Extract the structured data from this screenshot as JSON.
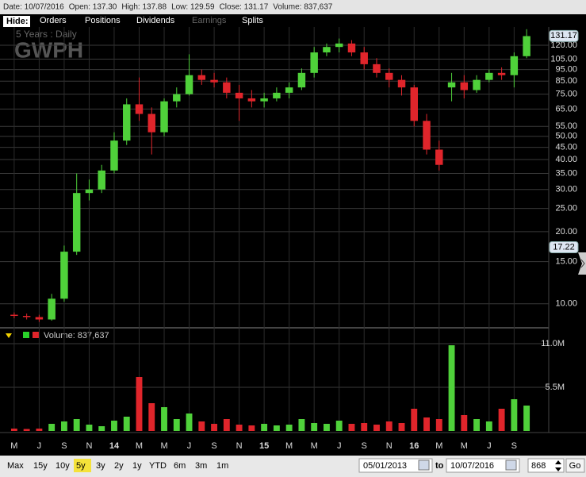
{
  "info": [
    "Date: 10/07/2016",
    "Open: 137.30",
    "High: 137.88",
    "Low: 129.59",
    "Close: 131.17",
    "Volume: 837,637"
  ],
  "tabs": {
    "hide": "Hide:",
    "items": [
      "Orders",
      "Positions",
      "Dividends",
      "Earnings",
      "Splits"
    ],
    "disabled": "Earnings"
  },
  "chart_data": {
    "type": "candlestick",
    "title": "GWPH",
    "subtitle": "5 Years : Daily",
    "log_scale": true,
    "grid": true,
    "up_color": "#4fd13a",
    "down_color": "#e0252b",
    "categories": [
      "M",
      null,
      "J",
      null,
      "S",
      null,
      "N",
      null,
      "14",
      null,
      "M",
      null,
      "M",
      null,
      "J",
      null,
      "S",
      null,
      "N",
      null,
      "15",
      null,
      "M",
      null,
      "M",
      null,
      "J",
      null,
      "S",
      null,
      "N",
      null,
      "16",
      null,
      "M",
      null,
      "M",
      null,
      "J",
      null,
      "S",
      null
    ],
    "open": [
      9.0,
      8.9,
      8.8,
      8.6,
      10.5,
      16.5,
      29,
      30,
      36,
      48,
      68,
      62,
      52,
      70,
      75,
      90,
      86,
      84,
      76,
      72,
      70,
      72,
      76,
      80,
      92,
      112,
      118,
      122,
      112,
      100,
      92,
      86,
      80,
      58,
      44,
      80,
      84,
      78,
      86,
      92,
      90,
      108
    ],
    "high": [
      9.2,
      9.1,
      9.0,
      11.0,
      17.5,
      35,
      33,
      38,
      52,
      72,
      88,
      66,
      72,
      80,
      110,
      95,
      92,
      88,
      82,
      78,
      76,
      80,
      84,
      96,
      118,
      122,
      128,
      126,
      118,
      106,
      96,
      90,
      82,
      62,
      48,
      92,
      90,
      90,
      95,
      97,
      112,
      140
    ],
    "low": [
      8.7,
      8.6,
      8.4,
      8.5,
      10.2,
      16,
      27,
      29,
      35,
      46,
      58,
      42,
      50,
      66,
      74,
      82,
      80,
      72,
      58,
      66,
      66,
      70,
      72,
      78,
      88,
      108,
      112,
      108,
      95,
      88,
      80,
      74,
      55,
      42,
      36,
      70,
      72,
      76,
      84,
      86,
      80,
      106
    ],
    "close": [
      8.9,
      8.8,
      8.6,
      10.5,
      16.5,
      29,
      30,
      36,
      48,
      68,
      62,
      52,
      70,
      75,
      90,
      86,
      84,
      76,
      72,
      70,
      72,
      76,
      80,
      92,
      112,
      118,
      122,
      112,
      100,
      92,
      86,
      80,
      58,
      44,
      38,
      84,
      78,
      86,
      92,
      90,
      108,
      131
    ],
    "ylim": [
      8,
      143
    ],
    "yticks": [
      {
        "value": 10,
        "label": "10.00"
      },
      {
        "value": 15,
        "label": "15.00"
      },
      {
        "value": 20,
        "label": "20.00"
      },
      {
        "value": 25,
        "label": "25.00"
      },
      {
        "value": 30,
        "label": "30.00"
      },
      {
        "value": 35,
        "label": "35.00"
      },
      {
        "value": 40,
        "label": "40.00"
      },
      {
        "value": 45,
        "label": "45.00"
      },
      {
        "value": 50,
        "label": "50.00"
      },
      {
        "value": 55,
        "label": "55.00"
      },
      {
        "value": 65,
        "label": "65.00"
      },
      {
        "value": 75,
        "label": "75.00"
      },
      {
        "value": 85,
        "label": "85.00"
      },
      {
        "value": 95,
        "label": "95.00"
      },
      {
        "value": 105,
        "label": "105.00"
      },
      {
        "value": 120,
        "label": "120.00"
      }
    ],
    "price_markers": [
      {
        "value": 131.17,
        "label": "131.17"
      },
      {
        "value": 17.22,
        "label": "17.22"
      }
    ],
    "volume": {
      "label": "Volume: 837,637",
      "values": [
        300000,
        250000,
        300000,
        900000,
        1200000,
        1500000,
        800000,
        600000,
        1300000,
        1800000,
        6800000,
        3500000,
        3000000,
        1500000,
        2200000,
        1200000,
        900000,
        1500000,
        800000,
        700000,
        900000,
        700000,
        800000,
        1500000,
        1000000,
        900000,
        1300000,
        900000,
        1000000,
        800000,
        1200000,
        1000000,
        2800000,
        1700000,
        1500000,
        10800000,
        2000000,
        1500000,
        1200000,
        2800000,
        4000000,
        3200000
      ],
      "ylim": [
        0,
        11500000
      ],
      "yticks": [
        {
          "value": 11000000,
          "label": "11.0M"
        },
        {
          "value": 5500000,
          "label": "5.5M"
        }
      ]
    }
  },
  "range_buttons": [
    "Max",
    "15y",
    "10y",
    "5y",
    "3y",
    "2y",
    "1y",
    "YTD",
    "6m",
    "3m",
    "1m"
  ],
  "selected_range": "5y",
  "date_from": "05/01/2013",
  "to": "to",
  "date_to": "10/07/2016",
  "bars": "868",
  "go": "Go"
}
